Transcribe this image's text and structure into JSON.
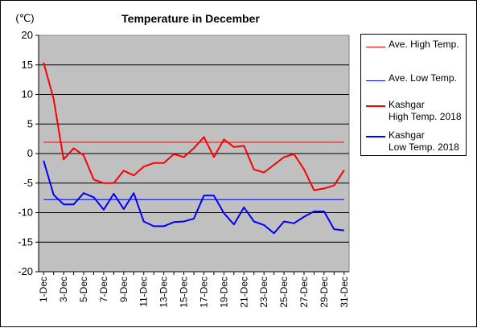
{
  "chart_data": {
    "type": "line",
    "title": "Temperature in December",
    "unit_label": "(℃)",
    "ylim": [
      -20,
      20
    ],
    "yticks": [
      20,
      15,
      10,
      5,
      0,
      -5,
      -10,
      -15,
      -20
    ],
    "grid": true,
    "legend_position": "right",
    "x": [
      "1-Dec",
      "2-Dec",
      "3-Dec",
      "4-Dec",
      "5-Dec",
      "6-Dec",
      "7-Dec",
      "8-Dec",
      "9-Dec",
      "10-Dec",
      "11-Dec",
      "12-Dec",
      "13-Dec",
      "14-Dec",
      "15-Dec",
      "16-Dec",
      "17-Dec",
      "18-Dec",
      "19-Dec",
      "20-Dec",
      "21-Dec",
      "22-Dec",
      "23-Dec",
      "24-Dec",
      "25-Dec",
      "26-Dec",
      "27-Dec",
      "28-Dec",
      "29-Dec",
      "30-Dec",
      "31-Dec"
    ],
    "xtick_labels": [
      "1-Dec",
      "3-Dec",
      "5-Dec",
      "7-Dec",
      "9-Dec",
      "11-Dec",
      "13-Dec",
      "15-Dec",
      "17-Dec",
      "19-Dec",
      "21-Dec",
      "23-Dec",
      "25-Dec",
      "27-Dec",
      "29-Dec",
      "31-Dec"
    ],
    "series": [
      {
        "name": "Ave. High Temp.",
        "color": "#ff0000",
        "width": 1,
        "values": [
          1.9,
          1.9,
          1.9,
          1.9,
          1.9,
          1.9,
          1.9,
          1.9,
          1.9,
          1.9,
          1.9,
          1.9,
          1.9,
          1.9,
          1.9,
          1.9,
          1.9,
          1.9,
          1.9,
          1.9,
          1.9,
          1.9,
          1.9,
          1.9,
          1.9,
          1.9,
          1.9,
          1.9,
          1.9,
          1.9,
          1.9
        ]
      },
      {
        "name": "Ave. Low Temp.",
        "color": "#0000ff",
        "width": 1,
        "values": [
          -7.8,
          -7.8,
          -7.8,
          -7.8,
          -7.8,
          -7.8,
          -7.8,
          -7.8,
          -7.8,
          -7.8,
          -7.8,
          -7.8,
          -7.8,
          -7.8,
          -7.8,
          -7.8,
          -7.8,
          -7.8,
          -7.8,
          -7.8,
          -7.8,
          -7.8,
          -7.8,
          -7.8,
          -7.8,
          -7.8,
          -7.8,
          -7.8,
          -7.8,
          -7.8,
          -7.8
        ]
      },
      {
        "name": "Kashgar\nHigh Temp. 2018",
        "color": "#ff0000",
        "width": 2,
        "values": [
          15.4,
          9.2,
          -1.0,
          0.9,
          -0.3,
          -4.4,
          -5.0,
          -5.0,
          -2.9,
          -3.7,
          -2.2,
          -1.6,
          -1.6,
          -0.1,
          -0.6,
          0.9,
          2.8,
          -0.6,
          2.4,
          1.1,
          1.3,
          -2.7,
          -3.2,
          -1.9,
          -0.6,
          -0.1,
          -2.7,
          -6.2,
          -5.9,
          -5.4,
          -2.8
        ]
      },
      {
        "name": "Kashgar\nLow Temp. 2018",
        "color": "#0000ff",
        "width": 2,
        "values": [
          -1.2,
          -7.0,
          -8.6,
          -8.6,
          -6.7,
          -7.4,
          -9.5,
          -6.8,
          -9.4,
          -6.7,
          -11.5,
          -12.3,
          -12.3,
          -11.6,
          -11.5,
          -11.0,
          -7.1,
          -7.1,
          -10.1,
          -12.0,
          -9.1,
          -11.5,
          -12.1,
          -13.5,
          -11.5,
          -11.8,
          -10.7,
          -9.8,
          -9.8,
          -12.8,
          -13.0
        ]
      }
    ]
  }
}
